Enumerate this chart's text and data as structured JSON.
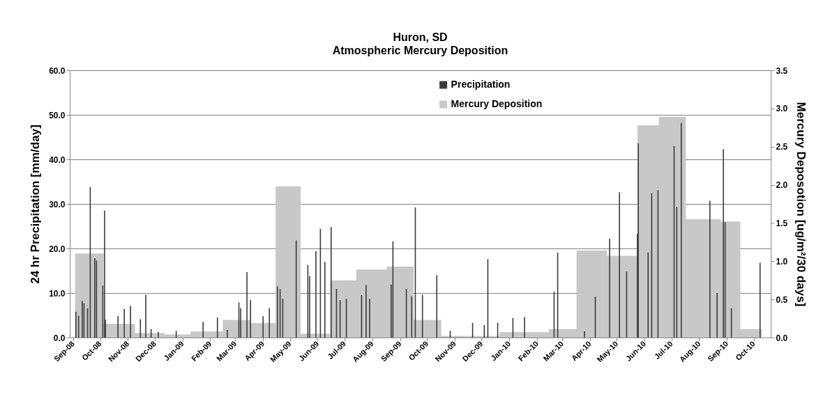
{
  "chart_data": {
    "type": "bar",
    "title": "Huron, SD",
    "subtitle": "Atmospheric Mercury Deposition",
    "ylabel": "24 hr Precipitation [mm/day]",
    "y2label": "Mercury Deposotion [ug/m²/30 days]",
    "xlim": [
      "2008-09-01",
      "2010-10-16"
    ],
    "xticks": [
      {
        "value": "2008-09-01",
        "label": "Sep-08"
      },
      {
        "value": "2008-10-01",
        "label": "Oct-08"
      },
      {
        "value": "2008-11-01",
        "label": "Nov-08"
      },
      {
        "value": "2008-12-01",
        "label": "Dec-08"
      },
      {
        "value": "2009-01-01",
        "label": "Jan-09"
      },
      {
        "value": "2009-02-01",
        "label": "Feb-09"
      },
      {
        "value": "2009-03-01",
        "label": "Mar-09"
      },
      {
        "value": "2009-04-01",
        "label": "Apr-09"
      },
      {
        "value": "2009-05-01",
        "label": "May-09"
      },
      {
        "value": "2009-06-01",
        "label": "Jun-09"
      },
      {
        "value": "2009-07-01",
        "label": "Jul-09"
      },
      {
        "value": "2009-08-01",
        "label": "Aug-09"
      },
      {
        "value": "2009-09-01",
        "label": "Sep-09"
      },
      {
        "value": "2009-10-01",
        "label": "Oct-09"
      },
      {
        "value": "2009-11-01",
        "label": "Nov-09"
      },
      {
        "value": "2009-12-01",
        "label": "Dec-09"
      },
      {
        "value": "2010-01-01",
        "label": "Jan-10"
      },
      {
        "value": "2010-02-01",
        "label": "Feb-10"
      },
      {
        "value": "2010-03-01",
        "label": "Mar-10"
      },
      {
        "value": "2010-04-01",
        "label": "Apr-10"
      },
      {
        "value": "2010-05-01",
        "label": "May-10"
      },
      {
        "value": "2010-06-01",
        "label": "Jun-10"
      },
      {
        "value": "2010-07-01",
        "label": "Jul-10"
      },
      {
        "value": "2010-08-01",
        "label": "Aug-10"
      },
      {
        "value": "2010-09-01",
        "label": "Sep-10"
      },
      {
        "value": "2010-10-01",
        "label": "Oct-10"
      }
    ],
    "ylim": [
      0,
      60
    ],
    "yticks": [
      {
        "value": 0,
        "label": "0.0"
      },
      {
        "value": 10,
        "label": "10.0"
      },
      {
        "value": 20,
        "label": "20.0"
      },
      {
        "value": 30,
        "label": "30.0"
      },
      {
        "value": 40,
        "label": "40.0"
      },
      {
        "value": 50,
        "label": "50.0"
      },
      {
        "value": 60,
        "label": "60.0"
      }
    ],
    "y2lim": [
      0,
      3.5
    ],
    "y2ticks": [
      {
        "value": 0,
        "label": "0.0"
      },
      {
        "value": 0.5,
        "label": "0.5"
      },
      {
        "value": 1,
        "label": "1.0"
      },
      {
        "value": 1.5,
        "label": "1.5"
      },
      {
        "value": 2,
        "label": "2.0"
      },
      {
        "value": 2.5,
        "label": "2.5"
      },
      {
        "value": 3,
        "label": "3.0"
      },
      {
        "value": 3.5,
        "label": "3.5"
      }
    ],
    "grid": "y",
    "legend": "top",
    "series": [
      {
        "name": "Precipitation",
        "color": "#3a3a3a",
        "x": [
          "2008-09-04",
          "2008-09-07",
          "2008-09-11",
          "2008-09-13",
          "2008-09-17",
          "2008-09-20",
          "2008-09-25",
          "2008-09-27",
          "2008-10-04",
          "2008-10-06",
          "2008-10-07",
          "2008-10-21",
          "2008-10-28",
          "2008-11-04",
          "2008-11-15",
          "2008-11-21",
          "2008-11-27",
          "2008-12-05",
          "2008-12-25",
          "2009-01-24",
          "2009-02-09",
          "2009-02-20",
          "2009-03-05",
          "2009-03-07",
          "2009-03-14",
          "2009-03-18",
          "2009-04-01",
          "2009-04-08",
          "2009-04-17",
          "2009-04-20",
          "2009-04-23",
          "2009-05-08",
          "2009-05-21",
          "2009-05-23",
          "2009-05-30",
          "2009-06-04",
          "2009-06-09",
          "2009-06-16",
          "2009-06-22",
          "2009-06-26",
          "2009-07-03",
          "2009-07-20",
          "2009-07-25",
          "2009-07-29",
          "2009-08-22",
          "2009-08-24",
          "2009-09-08",
          "2009-09-14",
          "2009-09-18",
          "2009-09-26",
          "2009-10-12",
          "2009-10-27",
          "2009-11-21",
          "2009-12-04",
          "2009-12-08",
          "2009-12-19",
          "2010-01-05",
          "2010-01-18",
          "2010-02-20",
          "2010-02-24",
          "2010-03-26",
          "2010-04-07",
          "2010-04-23",
          "2010-05-04",
          "2010-05-12",
          "2010-05-24",
          "2010-05-25",
          "2010-06-05",
          "2010-06-09",
          "2010-06-16",
          "2010-07-04",
          "2010-07-07",
          "2010-07-12",
          "2010-08-13",
          "2010-08-21",
          "2010-08-28",
          "2010-08-30",
          "2010-09-06",
          "2010-10-08"
        ],
        "values": [
          5.8,
          4.9,
          8.2,
          7.7,
          6.6,
          33.8,
          17.8,
          17.3,
          11.7,
          28.5,
          4.0,
          4.8,
          6.4,
          7.1,
          4.1,
          9.6,
          1.9,
          1.3,
          1.5,
          3.5,
          4.5,
          1.7,
          7.9,
          6.6,
          14.7,
          8.4,
          4.8,
          6.6,
          11.5,
          10.9,
          8.7,
          21.8,
          16.3,
          13.8,
          19.4,
          24.4,
          17.0,
          24.8,
          10.9,
          8.4,
          8.7,
          9.5,
          11.8,
          8.7,
          11.9,
          21.6,
          10.9,
          9.3,
          29.2,
          9.6,
          14.0,
          1.5,
          3.3,
          2.8,
          17.6,
          3.3,
          4.4,
          4.6,
          10.3,
          19.1,
          1.4,
          9.2,
          22.2,
          32.6,
          14.8,
          23.3,
          43.6,
          19.1,
          32.4,
          33.1,
          43.0,
          29.3,
          48.2,
          30.7,
          10.0,
          42.3,
          25.9,
          6.6,
          16.8
        ]
      },
      {
        "name": "Mercury Deposition",
        "type": "area",
        "axis": "y2",
        "color": "#c8c8c8",
        "x": [
          "2008-09-03",
          "2008-10-05",
          "2008-11-09",
          "2008-12-12",
          "2009-01-10",
          "2009-02-15",
          "2009-03-18",
          "2009-04-15",
          "2009-05-13",
          "2009-06-15",
          "2009-07-14",
          "2009-08-17",
          "2009-09-16",
          "2009-10-17",
          "2009-12-21",
          "2010-02-14",
          "2010-03-17",
          "2010-04-20",
          "2010-05-24",
          "2010-06-17",
          "2010-07-17",
          "2010-08-25",
          "2010-09-16",
          "2010-10-10"
        ],
        "values": [
          1.1,
          0.18,
          0.06,
          0.04,
          0.08,
          0.23,
          0.19,
          1.98,
          0.05,
          0.75,
          0.89,
          0.93,
          0.23,
          0.02,
          0.07,
          0.11,
          1.14,
          1.07,
          2.78,
          2.89,
          1.55,
          1.52,
          0.11,
          0.11
        ]
      }
    ]
  }
}
